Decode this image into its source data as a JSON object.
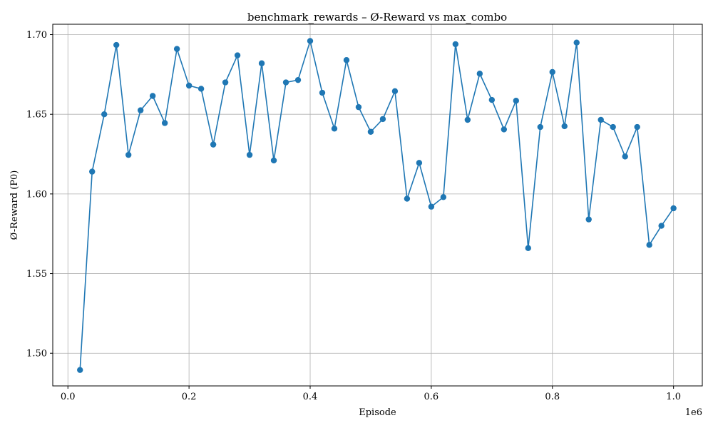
{
  "chart_data": {
    "type": "line",
    "title": "benchmark_rewards – Ø-Reward vs max_combo",
    "xlabel": "Episode",
    "ylabel": "Ø-Reward (P0)",
    "x_offset_label": "1e6",
    "xlim": [
      -25000,
      1047500
    ],
    "ylim": [
      1.4795,
      1.7065
    ],
    "xticks": [
      0,
      200000,
      400000,
      600000,
      800000,
      1000000
    ],
    "xtick_labels": [
      "0.0",
      "0.2",
      "0.4",
      "0.6",
      "0.8",
      "1.0"
    ],
    "yticks": [
      1.5,
      1.55,
      1.6,
      1.65,
      1.7
    ],
    "ytick_labels": [
      "1.50",
      "1.55",
      "1.60",
      "1.65",
      "1.70"
    ],
    "grid": true,
    "series": [
      {
        "color": "#1f77b4",
        "marker": "circle",
        "x": [
          20000,
          40000,
          60000,
          80000,
          100000,
          120000,
          140000,
          160000,
          180000,
          200000,
          220000,
          240000,
          260000,
          280000,
          300000,
          320000,
          340000,
          360000,
          380000,
          400000,
          420000,
          440000,
          460000,
          480000,
          500000,
          520000,
          540000,
          560000,
          580000,
          600000,
          620000,
          640000,
          660000,
          680000,
          700000,
          720000,
          740000,
          760000,
          780000,
          800000,
          820000,
          840000,
          860000,
          880000,
          900000,
          920000,
          940000,
          960000,
          980000,
          1000000
        ],
        "y": [
          1.4895,
          1.614,
          1.65,
          1.6935,
          1.6245,
          1.6525,
          1.6615,
          1.6445,
          1.691,
          1.668,
          1.666,
          1.631,
          1.67,
          1.687,
          1.6245,
          1.682,
          1.621,
          1.67,
          1.6715,
          1.696,
          1.6635,
          1.641,
          1.684,
          1.6545,
          1.639,
          1.647,
          1.6645,
          1.597,
          1.6195,
          1.592,
          1.598,
          1.694,
          1.6465,
          1.6755,
          1.659,
          1.6405,
          1.6585,
          1.566,
          1.642,
          1.6765,
          1.6425,
          1.695,
          1.584,
          1.6465,
          1.642,
          1.6235,
          1.642,
          1.568,
          1.58,
          1.591
        ]
      }
    ]
  }
}
